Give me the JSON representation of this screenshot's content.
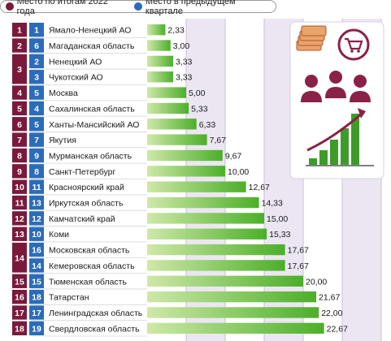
{
  "legend": {
    "items": [
      {
        "label": "Место по итогам 2022 года",
        "color": "#7a1a3a"
      },
      {
        "label": "Место в предыдущем квартале",
        "color": "#2b6cb8"
      }
    ]
  },
  "chart_data": {
    "type": "bar",
    "title": "",
    "xlim": [
      0,
      30
    ],
    "colors": {
      "rank_current": "#7a1a3a",
      "rank_previous": "#2b6cb8",
      "bar_from": "#cfe8a8",
      "bar_to": "#4caf2a",
      "stripe": "#ece6f3"
    },
    "rows": [
      {
        "region": "Ямало-Ненецкий АО",
        "rank": "1",
        "prev_rank": "1",
        "value": 2.33,
        "label": "2,33"
      },
      {
        "region": "Магаданская область",
        "rank": "2",
        "prev_rank": "6",
        "value": 3.0,
        "label": "3,00"
      },
      {
        "region": "Ненецкий АО",
        "rank": "3",
        "prev_rank": "2",
        "value": 3.33,
        "label": "3,33"
      },
      {
        "region": "Чукотский АО",
        "rank": "3",
        "prev_rank": "3",
        "value": 3.33,
        "label": "3,33"
      },
      {
        "region": "Москва",
        "rank": "4",
        "prev_rank": "5",
        "value": 5.0,
        "label": "5,00"
      },
      {
        "region": "Сахалинская область",
        "rank": "5",
        "prev_rank": "4",
        "value": 5.33,
        "label": "5,33"
      },
      {
        "region": "Ханты-Мансийский АО",
        "rank": "6",
        "prev_rank": "5",
        "value": 6.33,
        "label": "6,33"
      },
      {
        "region": "Якутия",
        "rank": "7",
        "prev_rank": "7",
        "value": 7.67,
        "label": "7,67"
      },
      {
        "region": "Мурманская область",
        "rank": "8",
        "prev_rank": "9",
        "value": 9.67,
        "label": "9,67"
      },
      {
        "region": "Санкт-Петербург",
        "rank": "9",
        "prev_rank": "8",
        "value": 10.0,
        "label": "10,00"
      },
      {
        "region": "Красноярский край",
        "rank": "10",
        "prev_rank": "11",
        "value": 12.67,
        "label": "12,67"
      },
      {
        "region": "Иркутская область",
        "rank": "11",
        "prev_rank": "13",
        "value": 14.33,
        "label": "14,33"
      },
      {
        "region": "Камчатский край",
        "rank": "12",
        "prev_rank": "12",
        "value": 15.0,
        "label": "15,00"
      },
      {
        "region": "Коми",
        "rank": "13",
        "prev_rank": "10",
        "value": 15.33,
        "label": "15,33"
      },
      {
        "region": "Московская область",
        "rank": "14",
        "prev_rank": "16",
        "value": 17.67,
        "label": "17,67"
      },
      {
        "region": "Кемеровская область",
        "rank": "14",
        "prev_rank": "14",
        "value": 17.67,
        "label": "17,67"
      },
      {
        "region": "Тюменская область",
        "rank": "15",
        "prev_rank": "15",
        "value": 20.0,
        "label": "20,00"
      },
      {
        "region": "Татарстан",
        "rank": "16",
        "prev_rank": "18",
        "value": 21.67,
        "label": "21,67"
      },
      {
        "region": "Ленинградская область",
        "rank": "17",
        "prev_rank": "17",
        "value": 22.0,
        "label": "22,00"
      },
      {
        "region": "Свердловская область",
        "rank": "18",
        "prev_rank": "19",
        "value": 22.67,
        "label": "22,67"
      }
    ]
  },
  "illustration": {
    "icon": "economy-growth-icon"
  }
}
